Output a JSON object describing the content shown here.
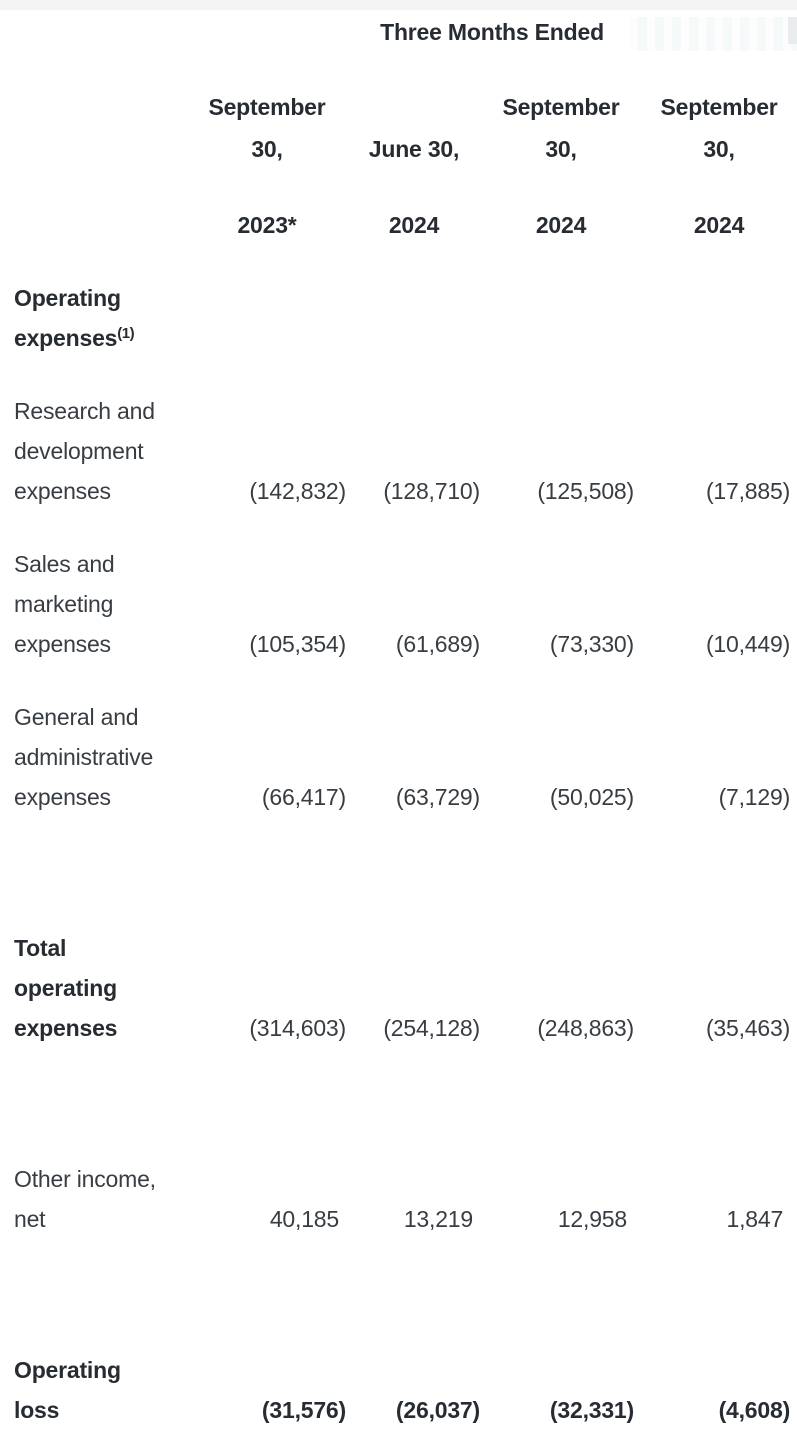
{
  "header": {
    "spanner": "Three Months Ended",
    "columns": [
      {
        "date": "September 30,",
        "date_lines": [
          "September",
          "30,"
        ],
        "year": "2023*"
      },
      {
        "date": "June 30,",
        "date_lines": [
          "June 30,"
        ],
        "year": "2024"
      },
      {
        "date": "September 30,",
        "date_lines": [
          "September",
          "30,"
        ],
        "year": "2024"
      },
      {
        "date": "September 30,",
        "date_lines": [
          "September",
          "30,"
        ],
        "year": "2024"
      }
    ]
  },
  "rows": [
    {
      "id": "operating-expenses-heading",
      "label": "Operating expenses",
      "label_lines": [
        "Operating",
        "expenses"
      ],
      "footnote_superscript": "(1)",
      "label_bold": true,
      "values_bold": false,
      "gap": "normal",
      "values": [
        "",
        "",
        "",
        ""
      ]
    },
    {
      "id": "research-and-development-expenses",
      "label": "Research and development expenses",
      "label_lines": [
        "Research and",
        "development",
        "expenses"
      ],
      "label_bold": false,
      "values_bold": false,
      "gap": "normal",
      "values": [
        "(142,832)",
        "(128,710)",
        "(125,508)",
        "(17,885)"
      ]
    },
    {
      "id": "sales-and-marketing-expenses",
      "label": "Sales and marketing expenses",
      "label_lines": [
        "Sales and",
        "marketing",
        "expenses"
      ],
      "label_bold": false,
      "values_bold": false,
      "gap": "normal",
      "values": [
        "(105,354)",
        "(61,689)",
        "(73,330)",
        "(10,449)"
      ]
    },
    {
      "id": "general-and-administrative-expenses",
      "label": "General and administrative expenses",
      "label_lines": [
        "General and",
        "administrative",
        "expenses"
      ],
      "label_bold": false,
      "values_bold": false,
      "gap": "normal",
      "values": [
        "(66,417)",
        "(63,729)",
        "(50,025)",
        "(7,129)"
      ]
    },
    {
      "id": "total-operating-expenses",
      "label": "Total operating expenses",
      "label_lines": [
        "Total",
        "operating",
        "expenses"
      ],
      "label_bold": true,
      "values_bold": false,
      "gap": "large",
      "values": [
        "(314,603)",
        "(254,128)",
        "(248,863)",
        "(35,463)"
      ]
    },
    {
      "id": "other-income-net",
      "label": "Other income, net",
      "label_lines": [
        "Other income,",
        "net"
      ],
      "label_bold": false,
      "values_bold": false,
      "gap": "large",
      "values": [
        "40,185",
        "13,219",
        "12,958",
        "1,847"
      ]
    },
    {
      "id": "operating-loss",
      "label": "Operating loss",
      "label_lines": [
        "Operating",
        "loss"
      ],
      "label_bold": true,
      "values_bold": true,
      "gap": "large",
      "values": [
        "(31,576)",
        "(26,037)",
        "(32,331)",
        "(4,608)"
      ]
    }
  ],
  "colors": {
    "text_regular": "#383d43",
    "text_bold": "#272c33",
    "top_strip": "#f5f4f5",
    "stripe_light": "#f6f9fa",
    "corner_gray": "#e9ecee",
    "background": "#ffffff"
  }
}
